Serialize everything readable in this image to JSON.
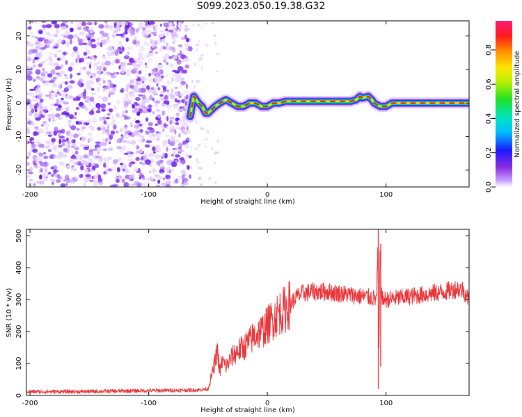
{
  "title": "S099.2023.050.19.38.G32",
  "chart_data": [
    {
      "type": "heatmap",
      "xlabel": "Height of straight line (km)",
      "ylabel": "Frequency (Hz)",
      "xlim": [
        -203,
        170
      ],
      "ylim": [
        -25,
        24.5
      ],
      "xticks": [
        -200,
        -100,
        0,
        100
      ],
      "yticks": [
        -20,
        -10,
        0,
        10,
        20
      ],
      "xtick_labels": [
        "-200",
        "-100",
        "0",
        "100"
      ],
      "ytick_labels": [
        "-20",
        "-10",
        "0",
        "10",
        "20"
      ],
      "noise_region_x": [
        -203,
        -65
      ],
      "signal_track": {
        "x": [
          -65,
          -62,
          -58,
          -55,
          -52,
          -50,
          -47,
          -44,
          -40,
          -35,
          -30,
          -25,
          -20,
          -15,
          -10,
          -5,
          0,
          5,
          10,
          15,
          20,
          25,
          30,
          40,
          50,
          60,
          70,
          75,
          78,
          80,
          85,
          88,
          90,
          95,
          100,
          105,
          110,
          120,
          130,
          140,
          150,
          160,
          170
        ],
        "y": [
          -4,
          2,
          0,
          -1,
          -3,
          -3,
          -2,
          -1,
          0,
          1,
          0,
          -1,
          -1,
          0,
          0,
          -1,
          -1,
          0,
          0,
          0.5,
          0.5,
          0.5,
          0.5,
          0.5,
          0.5,
          0.5,
          0.5,
          1,
          2,
          1.5,
          2,
          1,
          0,
          -1,
          -1,
          0,
          0,
          0,
          0,
          0,
          0,
          0,
          0
        ]
      },
      "colorbar": {
        "label": "Normalized spectral amplitude",
        "ticks": [
          0.0,
          0.2,
          0.4,
          0.6,
          0.8
        ],
        "tick_labels": [
          "0.0",
          "0.2",
          "0.4",
          "0.6",
          "0.8"
        ],
        "range": [
          0,
          0.97
        ]
      }
    },
    {
      "type": "line",
      "color": "#e8353a",
      "xlabel": "Height of straight line (km)",
      "ylabel": "SNR (10 * v/v)",
      "xlim": [
        -203,
        170
      ],
      "ylim": [
        0,
        520
      ],
      "xticks": [
        -200,
        -100,
        0,
        100
      ],
      "yticks": [
        0,
        100,
        200,
        300,
        400,
        500
      ],
      "xtick_labels": [
        "-200",
        "-100",
        "0",
        "100"
      ],
      "ytick_labels": [
        "0",
        "100",
        "200",
        "300",
        "400",
        "500"
      ],
      "x": [
        -203,
        -180,
        -160,
        -140,
        -120,
        -100,
        -80,
        -60,
        -50,
        -45,
        -42,
        -40,
        -38,
        -35,
        -30,
        -25,
        -20,
        -15,
        -10,
        -5,
        0,
        5,
        10,
        15,
        20,
        25,
        30,
        40,
        50,
        60,
        70,
        80,
        90,
        92,
        93,
        94,
        95,
        96,
        97,
        100,
        110,
        120,
        130,
        140,
        150,
        160,
        165,
        170
      ],
      "y": [
        12,
        12,
        12,
        13,
        14,
        15,
        16,
        17,
        20,
        90,
        140,
        70,
        110,
        90,
        120,
        140,
        150,
        170,
        190,
        200,
        220,
        240,
        260,
        270,
        290,
        310,
        320,
        325,
        325,
        320,
        315,
        310,
        305,
        300,
        440,
        130,
        460,
        320,
        300,
        300,
        305,
        310,
        315,
        320,
        325,
        335,
        330,
        300
      ],
      "spikes": [
        {
          "x": 93.5,
          "high": 520,
          "low": 20
        },
        {
          "x": 95.5,
          "high": 475,
          "low": 90
        }
      ]
    }
  ]
}
